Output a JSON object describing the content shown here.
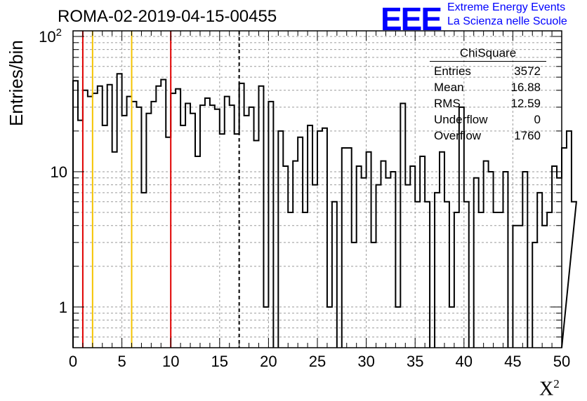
{
  "chart_data": {
    "type": "histogram",
    "title": "ROMA-02-2019-04-15-00455",
    "xlabel": "X",
    "xlabel_sup": "2",
    "ylabel": "Entries/bin",
    "xlim": [
      0,
      50
    ],
    "ylim": [
      0.5,
      110
    ],
    "yscale": "log",
    "grid": true,
    "bin_width": 0.5,
    "x_ticks": [
      0,
      5,
      10,
      15,
      20,
      25,
      30,
      35,
      40,
      45,
      50
    ],
    "y_ticks": [
      {
        "value": 1,
        "label": "1"
      },
      {
        "value": 10,
        "label": "10"
      },
      {
        "value": 100,
        "label": "10",
        "sup": "2"
      }
    ],
    "counts": [
      47,
      24,
      40,
      36,
      38,
      43,
      22,
      44,
      14,
      53,
      26,
      36,
      33,
      30,
      7,
      27,
      33,
      43,
      48,
      18,
      38,
      41,
      22,
      32,
      27,
      13,
      31,
      35,
      31,
      29,
      19,
      36,
      31,
      19,
      45,
      26,
      30,
      17,
      43,
      1,
      33,
      0,
      20,
      11,
      5,
      12,
      18,
      5,
      22,
      8,
      20,
      21,
      1,
      6,
      0,
      15,
      15,
      3,
      11,
      9,
      14,
      3,
      8,
      12,
      9,
      10,
      1,
      32,
      8,
      11,
      6,
      13,
      6,
      0,
      7,
      14,
      6,
      1,
      5,
      30,
      6,
      0,
      9,
      5,
      12,
      10,
      5,
      5,
      10,
      0,
      4,
      4,
      10,
      0,
      3,
      7,
      4,
      5,
      11,
      9,
      15,
      20,
      6
    ],
    "vertical_lines": [
      {
        "x": 1,
        "color": "#e00000"
      },
      {
        "x": 2,
        "color": "#f5c400"
      },
      {
        "x": 6,
        "color": "#f5c400"
      },
      {
        "x": 10,
        "color": "#e00000"
      },
      {
        "x": 17,
        "color": "#000000",
        "style": "dashed"
      }
    ],
    "stats_box": {
      "title": "ChiSquare",
      "rows": [
        {
          "label": "Entries",
          "value": "3572"
        },
        {
          "label": "Mean",
          "value": "16.88"
        },
        {
          "label": "RMS",
          "value": "12.59"
        },
        {
          "label": "Underflow",
          "value": "0"
        },
        {
          "label": "Overflow",
          "value": "1760"
        }
      ]
    }
  },
  "logo": {
    "mark": "EEE",
    "line1": "Extreme Energy Events",
    "line2": "La Scienza nelle Scuole",
    "color": "#0000ff"
  }
}
